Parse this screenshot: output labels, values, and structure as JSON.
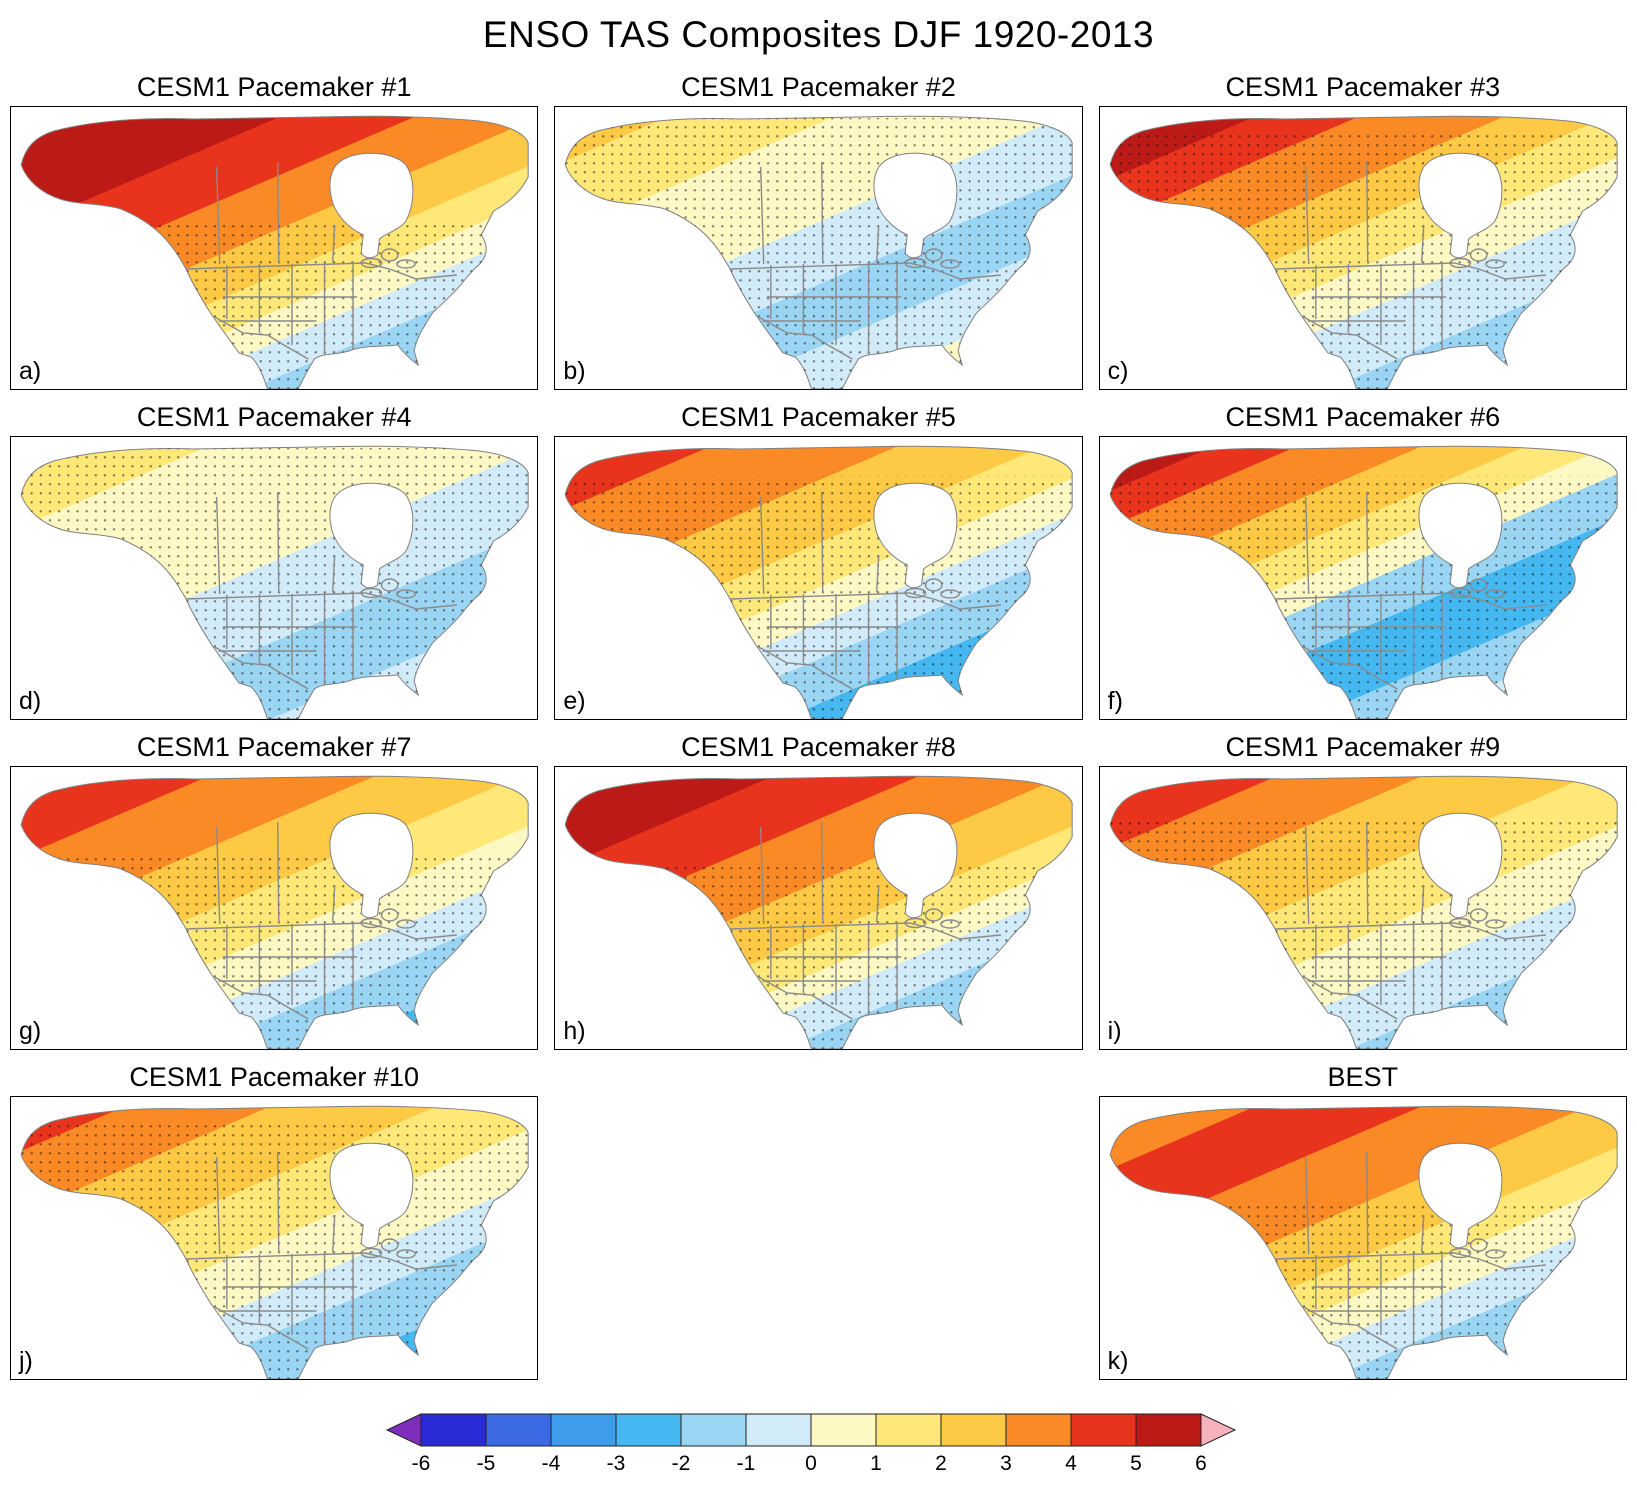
{
  "chart_data": {
    "type": "heatmap",
    "title": "ENSO TAS Composites DJF 1920-2013",
    "region": "North America",
    "stippling_present": true,
    "palette": {
      "dkred": "#bb1a16",
      "red": "#e8341c",
      "orange": "#f98a25",
      "yorange": "#fec944",
      "yellow": "#ffe878",
      "pyellow": "#fdf8c4",
      "pblue": "#d2ebf9",
      "lblue": "#9bd5f4",
      "mblue": "#45b8f1",
      "blue": "#3d9cec",
      "pink": "#f8b1bd"
    },
    "colorbar": {
      "tick_labels": [
        "-6",
        "-5",
        "-4",
        "-3",
        "-2",
        "-1",
        "0",
        "1",
        "2",
        "3",
        "4",
        "5",
        "6"
      ],
      "segment_colors": [
        "#2a2ad6",
        "#3b6ae4",
        "#3d9cec",
        "#45b8f1",
        "#9bd5f4",
        "#d2ebf9",
        "#fdf8c4",
        "#ffe878",
        "#fec944",
        "#f98a25",
        "#e8341c",
        "#bb1a16"
      ],
      "left_arrow_color": "#7d2ebc",
      "right_arrow_color": "#f8b1bd"
    },
    "panels": [
      {
        "label": "a)",
        "title": "CESM1 Pacemaker #1",
        "anomaly_pattern": "Strong warm anomaly (4 to 6) over Alaska and northern Canada, grading to cool (-1 to -2) over the southeastern United States",
        "bands": [
          [
            "dkred",
            0.25
          ],
          [
            "red",
            0.38
          ],
          [
            "orange",
            0.5
          ],
          [
            "yorange",
            0.6
          ],
          [
            "yellow",
            0.68
          ],
          [
            "pyellow",
            0.75
          ],
          [
            "pblue",
            0.83
          ],
          [
            "lblue",
            1.0
          ]
        ],
        "stipple_from": 0.42
      },
      {
        "label": "b)",
        "title": "CESM1 Pacemaker #2",
        "anomaly_pattern": "Weak pattern: slight warm (0 to 2) in north and west, weak cool (-1 to -2) over central and eastern United States, widespread stippling",
        "bands": [
          [
            "yorange",
            0.1
          ],
          [
            "yellow",
            0.26
          ],
          [
            "pyellow",
            0.48
          ],
          [
            "pblue",
            0.62
          ],
          [
            "lblue",
            0.76
          ],
          [
            "pblue",
            0.88
          ],
          [
            "pyellow",
            1.0
          ]
        ],
        "stipple_from": 0.04
      },
      {
        "label": "c)",
        "title": "CESM1 Pacemaker #3",
        "anomaly_pattern": "Dark red (5 to 6) over Alaska, orange over western Canada, weak cool (-1) over eastern Canada and southeastern US",
        "bands": [
          [
            "dkred",
            0.14
          ],
          [
            "red",
            0.24
          ],
          [
            "orange",
            0.38
          ],
          [
            "yorange",
            0.48
          ],
          [
            "yellow",
            0.58
          ],
          [
            "pyellow",
            0.68
          ],
          [
            "pblue",
            0.82
          ],
          [
            "lblue",
            0.92
          ],
          [
            "pblue",
            1.0
          ]
        ],
        "stipple_from": 0.08
      },
      {
        "label": "d)",
        "title": "CESM1 Pacemaker #4",
        "anomaly_pattern": "Weak pattern: pale warm (0 to 1) across the north, weak cool (-1 to -2) across central and southern US, widespread stippling",
        "bands": [
          [
            "yellow",
            0.18
          ],
          [
            "pyellow",
            0.5
          ],
          [
            "pblue",
            0.68
          ],
          [
            "lblue",
            0.85
          ],
          [
            "pblue",
            1.0
          ]
        ],
        "stipple_from": 0.04
      },
      {
        "label": "e)",
        "title": "CESM1 Pacemaker #5",
        "anomaly_pattern": "Warm (3 to 5) over Alaska and NW Canada, cool (-2 to -3) over the central-eastern United States",
        "bands": [
          [
            "red",
            0.14
          ],
          [
            "orange",
            0.32
          ],
          [
            "yorange",
            0.46
          ],
          [
            "yellow",
            0.56
          ],
          [
            "pyellow",
            0.64
          ],
          [
            "pblue",
            0.72
          ],
          [
            "lblue",
            0.82
          ],
          [
            "mblue",
            0.93
          ],
          [
            "lblue",
            1.0
          ]
        ],
        "stipple_from": 0.14
      },
      {
        "label": "f)",
        "title": "CESM1 Pacemaker #6",
        "anomaly_pattern": "Dark red (5 to 6) confined to Alaska, strong cool (-2 to -3) over central Canada and the central/southern United States",
        "bands": [
          [
            "dkred",
            0.1
          ],
          [
            "red",
            0.18
          ],
          [
            "orange",
            0.3
          ],
          [
            "yorange",
            0.4
          ],
          [
            "yellow",
            0.48
          ],
          [
            "pyellow",
            0.55
          ],
          [
            "lblue",
            0.65
          ],
          [
            "mblue",
            0.8
          ],
          [
            "lblue",
            0.9
          ],
          [
            "pblue",
            1.0
          ]
        ],
        "stipple_from": 0.14
      },
      {
        "label": "g)",
        "title": "CESM1 Pacemaker #7",
        "anomaly_pattern": "Warm (4 to 5) over Alaska and Yukon, orange across Canada, cool (-2) over the southern United States",
        "bands": [
          [
            "red",
            0.18
          ],
          [
            "orange",
            0.34
          ],
          [
            "yorange",
            0.48
          ],
          [
            "yellow",
            0.6
          ],
          [
            "pyellow",
            0.7
          ],
          [
            "pblue",
            0.78
          ],
          [
            "lblue",
            0.9
          ],
          [
            "mblue",
            1.0
          ]
        ],
        "stipple_from": 0.3
      },
      {
        "label": "h)",
        "title": "CESM1 Pacemaker #8",
        "anomaly_pattern": "Very strong warm (5 to >6, pink over SW Alaska) across Alaska and NW Canada, cool (-2) over the southern United States",
        "bands": [
          [
            "pink",
            0.04
          ],
          [
            "dkred",
            0.2
          ],
          [
            "red",
            0.34
          ],
          [
            "orange",
            0.48
          ],
          [
            "yorange",
            0.6
          ],
          [
            "yellow",
            0.68
          ],
          [
            "pyellow",
            0.74
          ],
          [
            "pblue",
            0.82
          ],
          [
            "lblue",
            0.93
          ],
          [
            "mblue",
            1.0
          ]
        ],
        "stipple_from": 0.34
      },
      {
        "label": "i)",
        "title": "CESM1 Pacemaker #9",
        "anomaly_pattern": "Warm (4 to 5) over Alaska/NW Canada, broad weak warm (0 to 2) center, weak cool (-1) over southern US",
        "bands": [
          [
            "red",
            0.16
          ],
          [
            "orange",
            0.3
          ],
          [
            "yorange",
            0.46
          ],
          [
            "yellow",
            0.6
          ],
          [
            "pyellow",
            0.72
          ],
          [
            "pblue",
            0.84
          ],
          [
            "lblue",
            0.94
          ],
          [
            "pblue",
            1.0
          ]
        ],
        "stipple_from": 0.18
      },
      {
        "label": "j)",
        "title": "CESM1 Pacemaker #10",
        "anomaly_pattern": "Warm (4 to 5) over Alaska, orange NW Canada, cool (-2 to -3) over the south-central United States",
        "bands": [
          [
            "red",
            0.1
          ],
          [
            "orange",
            0.24
          ],
          [
            "yorange",
            0.4
          ],
          [
            "yellow",
            0.54
          ],
          [
            "pyellow",
            0.66
          ],
          [
            "pblue",
            0.75
          ],
          [
            "lblue",
            0.88
          ],
          [
            "mblue",
            1.0
          ]
        ],
        "stipple_from": 0.08
      },
      {
        "label": "k)",
        "title": "BEST",
        "anomaly_pattern": "Observations: warm core (3 to 4) over west-central Canada, orange across Alaska and Canada, cool (-2 to -3) over the southeastern United States",
        "bands": [
          [
            "orange",
            0.14
          ],
          [
            "red",
            0.3
          ],
          [
            "orange",
            0.46
          ],
          [
            "yorange",
            0.58
          ],
          [
            "yellow",
            0.66
          ],
          [
            "pyellow",
            0.74
          ],
          [
            "pblue",
            0.82
          ],
          [
            "lblue",
            0.93
          ],
          [
            "mblue",
            1.0
          ]
        ],
        "stipple_from": 0.38
      }
    ]
  }
}
